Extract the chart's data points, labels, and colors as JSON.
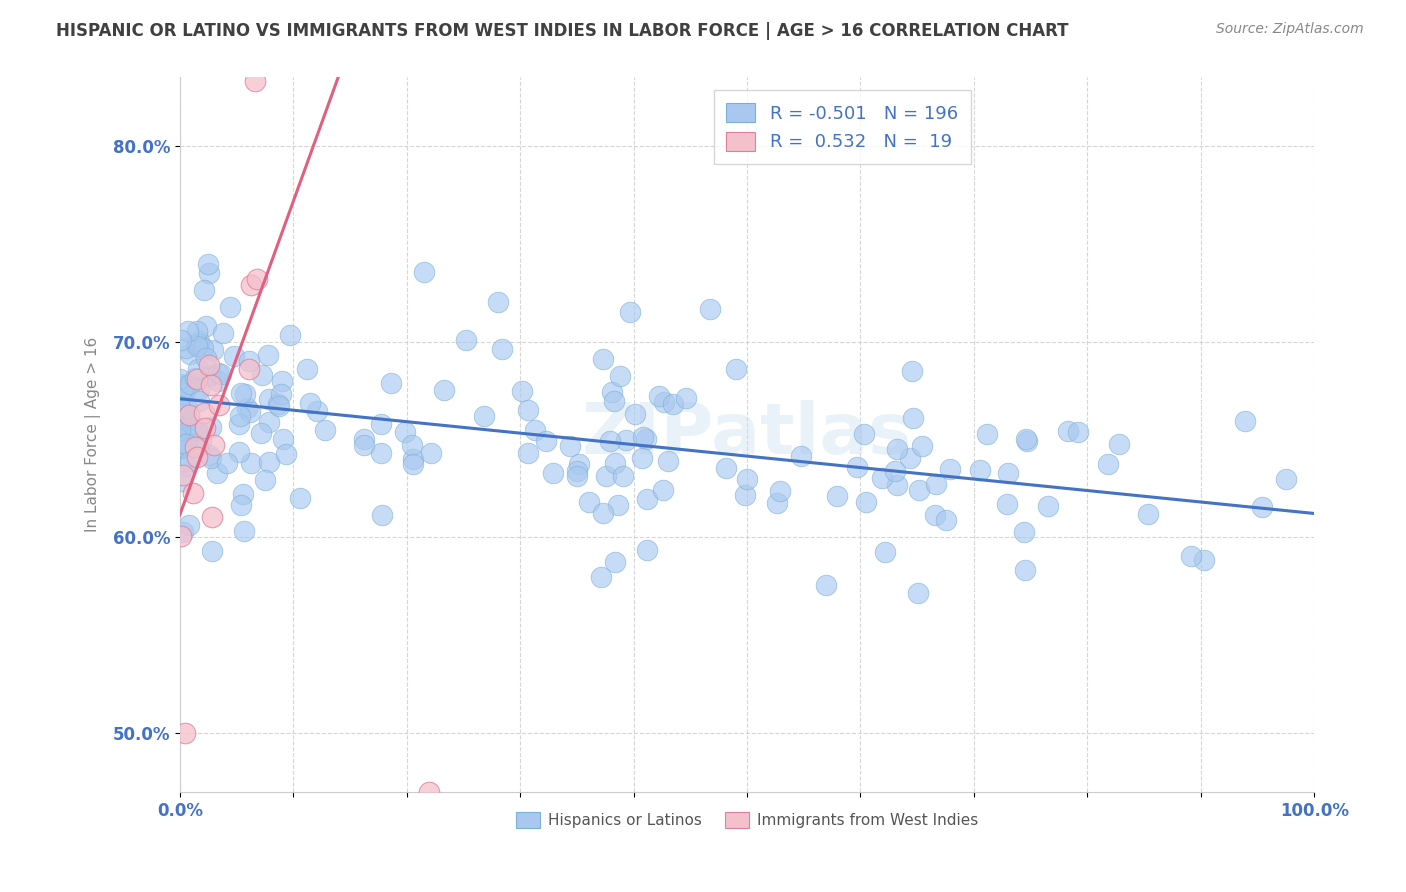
{
  "title": "HISPANIC OR LATINO VS IMMIGRANTS FROM WEST INDIES IN LABOR FORCE | AGE > 16 CORRELATION CHART",
  "source": "Source: ZipAtlas.com",
  "ylabel": "In Labor Force | Age > 16",
  "watermark": "ZIPatlas",
  "blue_R": -0.501,
  "blue_N": 196,
  "pink_R": 0.532,
  "pink_N": 19,
  "blue_line_color": "#4472c4",
  "pink_line_color": "#e06080",
  "blue_scatter_color": "#a8c8f0",
  "blue_scatter_edge": "#7bafd4",
  "pink_scatter_color": "#f4c0cc",
  "pink_scatter_edge": "#e08098",
  "legend_blue_label": "Hispanics or Latinos",
  "legend_pink_label": "Immigrants from West Indies",
  "xlim": [
    0.0,
    1.0
  ],
  "ylim": [
    0.47,
    0.835
  ],
  "y_ticks": [
    0.5,
    0.6,
    0.7,
    0.8
  ],
  "x_tick_labels_visible": [
    "0.0%",
    "100.0%"
  ],
  "background_color": "#ffffff",
  "grid_color": "#cccccc",
  "title_color": "#404040",
  "source_color": "#888888"
}
